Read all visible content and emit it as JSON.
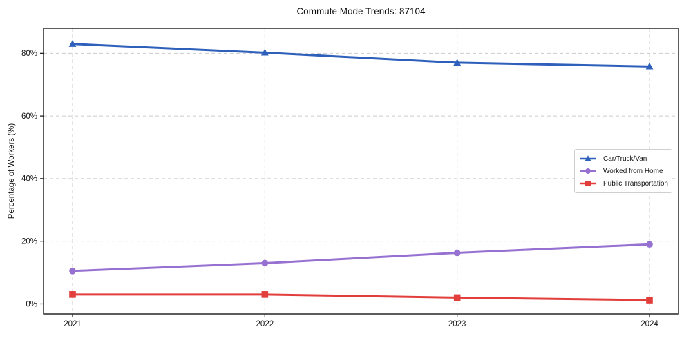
{
  "chart_data": {
    "type": "line",
    "title": "Commute Mode Trends: 87104",
    "xlabel": "",
    "ylabel": "Percentage of Workers (%)",
    "categories": [
      "2021",
      "2022",
      "2023",
      "2024"
    ],
    "series": [
      {
        "name": "Car/Truck/Van",
        "values": [
          83.0,
          80.2,
          77.0,
          75.8
        ],
        "color": "#2e5fbb",
        "marker": "triangle"
      },
      {
        "name": "Worked from Home",
        "values": [
          10.5,
          13.0,
          16.3,
          19.0
        ],
        "color": "#9671d1",
        "marker": "circle"
      },
      {
        "name": "Public Transportation",
        "values": [
          3.0,
          3.0,
          2.0,
          1.2
        ],
        "color": "#e23e3c",
        "marker": "square"
      }
    ],
    "ylim": [
      -3.2,
      88
    ],
    "yticks": [
      0,
      20,
      40,
      60,
      80
    ],
    "ytick_labels": [
      "0%",
      "20%",
      "40%",
      "60%",
      "80%"
    ],
    "grid": true,
    "grid_style": "dashed",
    "legend_position": "center-right",
    "colors": {
      "background": "#ffffff",
      "gridline": "#cbcbcb",
      "axis_border": "#17171b",
      "text": "#111111"
    }
  }
}
